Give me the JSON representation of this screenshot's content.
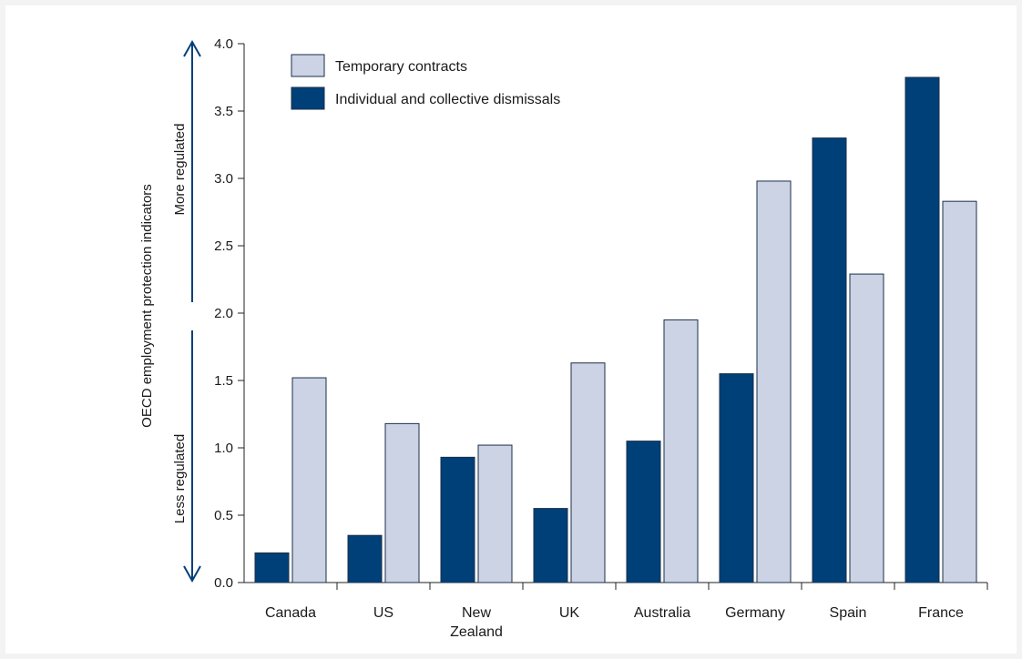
{
  "chart_data": {
    "type": "bar",
    "title": "",
    "ylabel": "OECD employment protection indicators",
    "xlabel": "",
    "ylim": [
      0,
      4
    ],
    "yticks": [
      "0.0",
      "0.5",
      "1.0",
      "1.5",
      "2.0",
      "2.5",
      "3.0",
      "3.5",
      "4.0"
    ],
    "grid": false,
    "legend_position": "top-left",
    "annotations": {
      "upper": "More regulated",
      "lower": "Less regulated"
    },
    "categories": [
      [
        "Canada"
      ],
      [
        "US"
      ],
      [
        "New",
        "Zealand"
      ],
      [
        "UK"
      ],
      [
        "Australia"
      ],
      [
        "Germany"
      ],
      [
        "Spain"
      ],
      [
        "France"
      ]
    ],
    "series": [
      {
        "name": "Individual and collective dismissals",
        "color": "#004079",
        "values": [
          0.22,
          0.35,
          0.93,
          0.55,
          1.05,
          1.55,
          3.3,
          3.75
        ]
      },
      {
        "name": "Temporary contracts",
        "color": "#cbd3e4",
        "values": [
          1.52,
          1.18,
          1.02,
          1.63,
          1.95,
          2.98,
          2.29,
          2.83
        ]
      }
    ],
    "legend_order": [
      "Temporary contracts",
      "Individual and collective dismissals"
    ],
    "arrow_color": "#004079"
  }
}
